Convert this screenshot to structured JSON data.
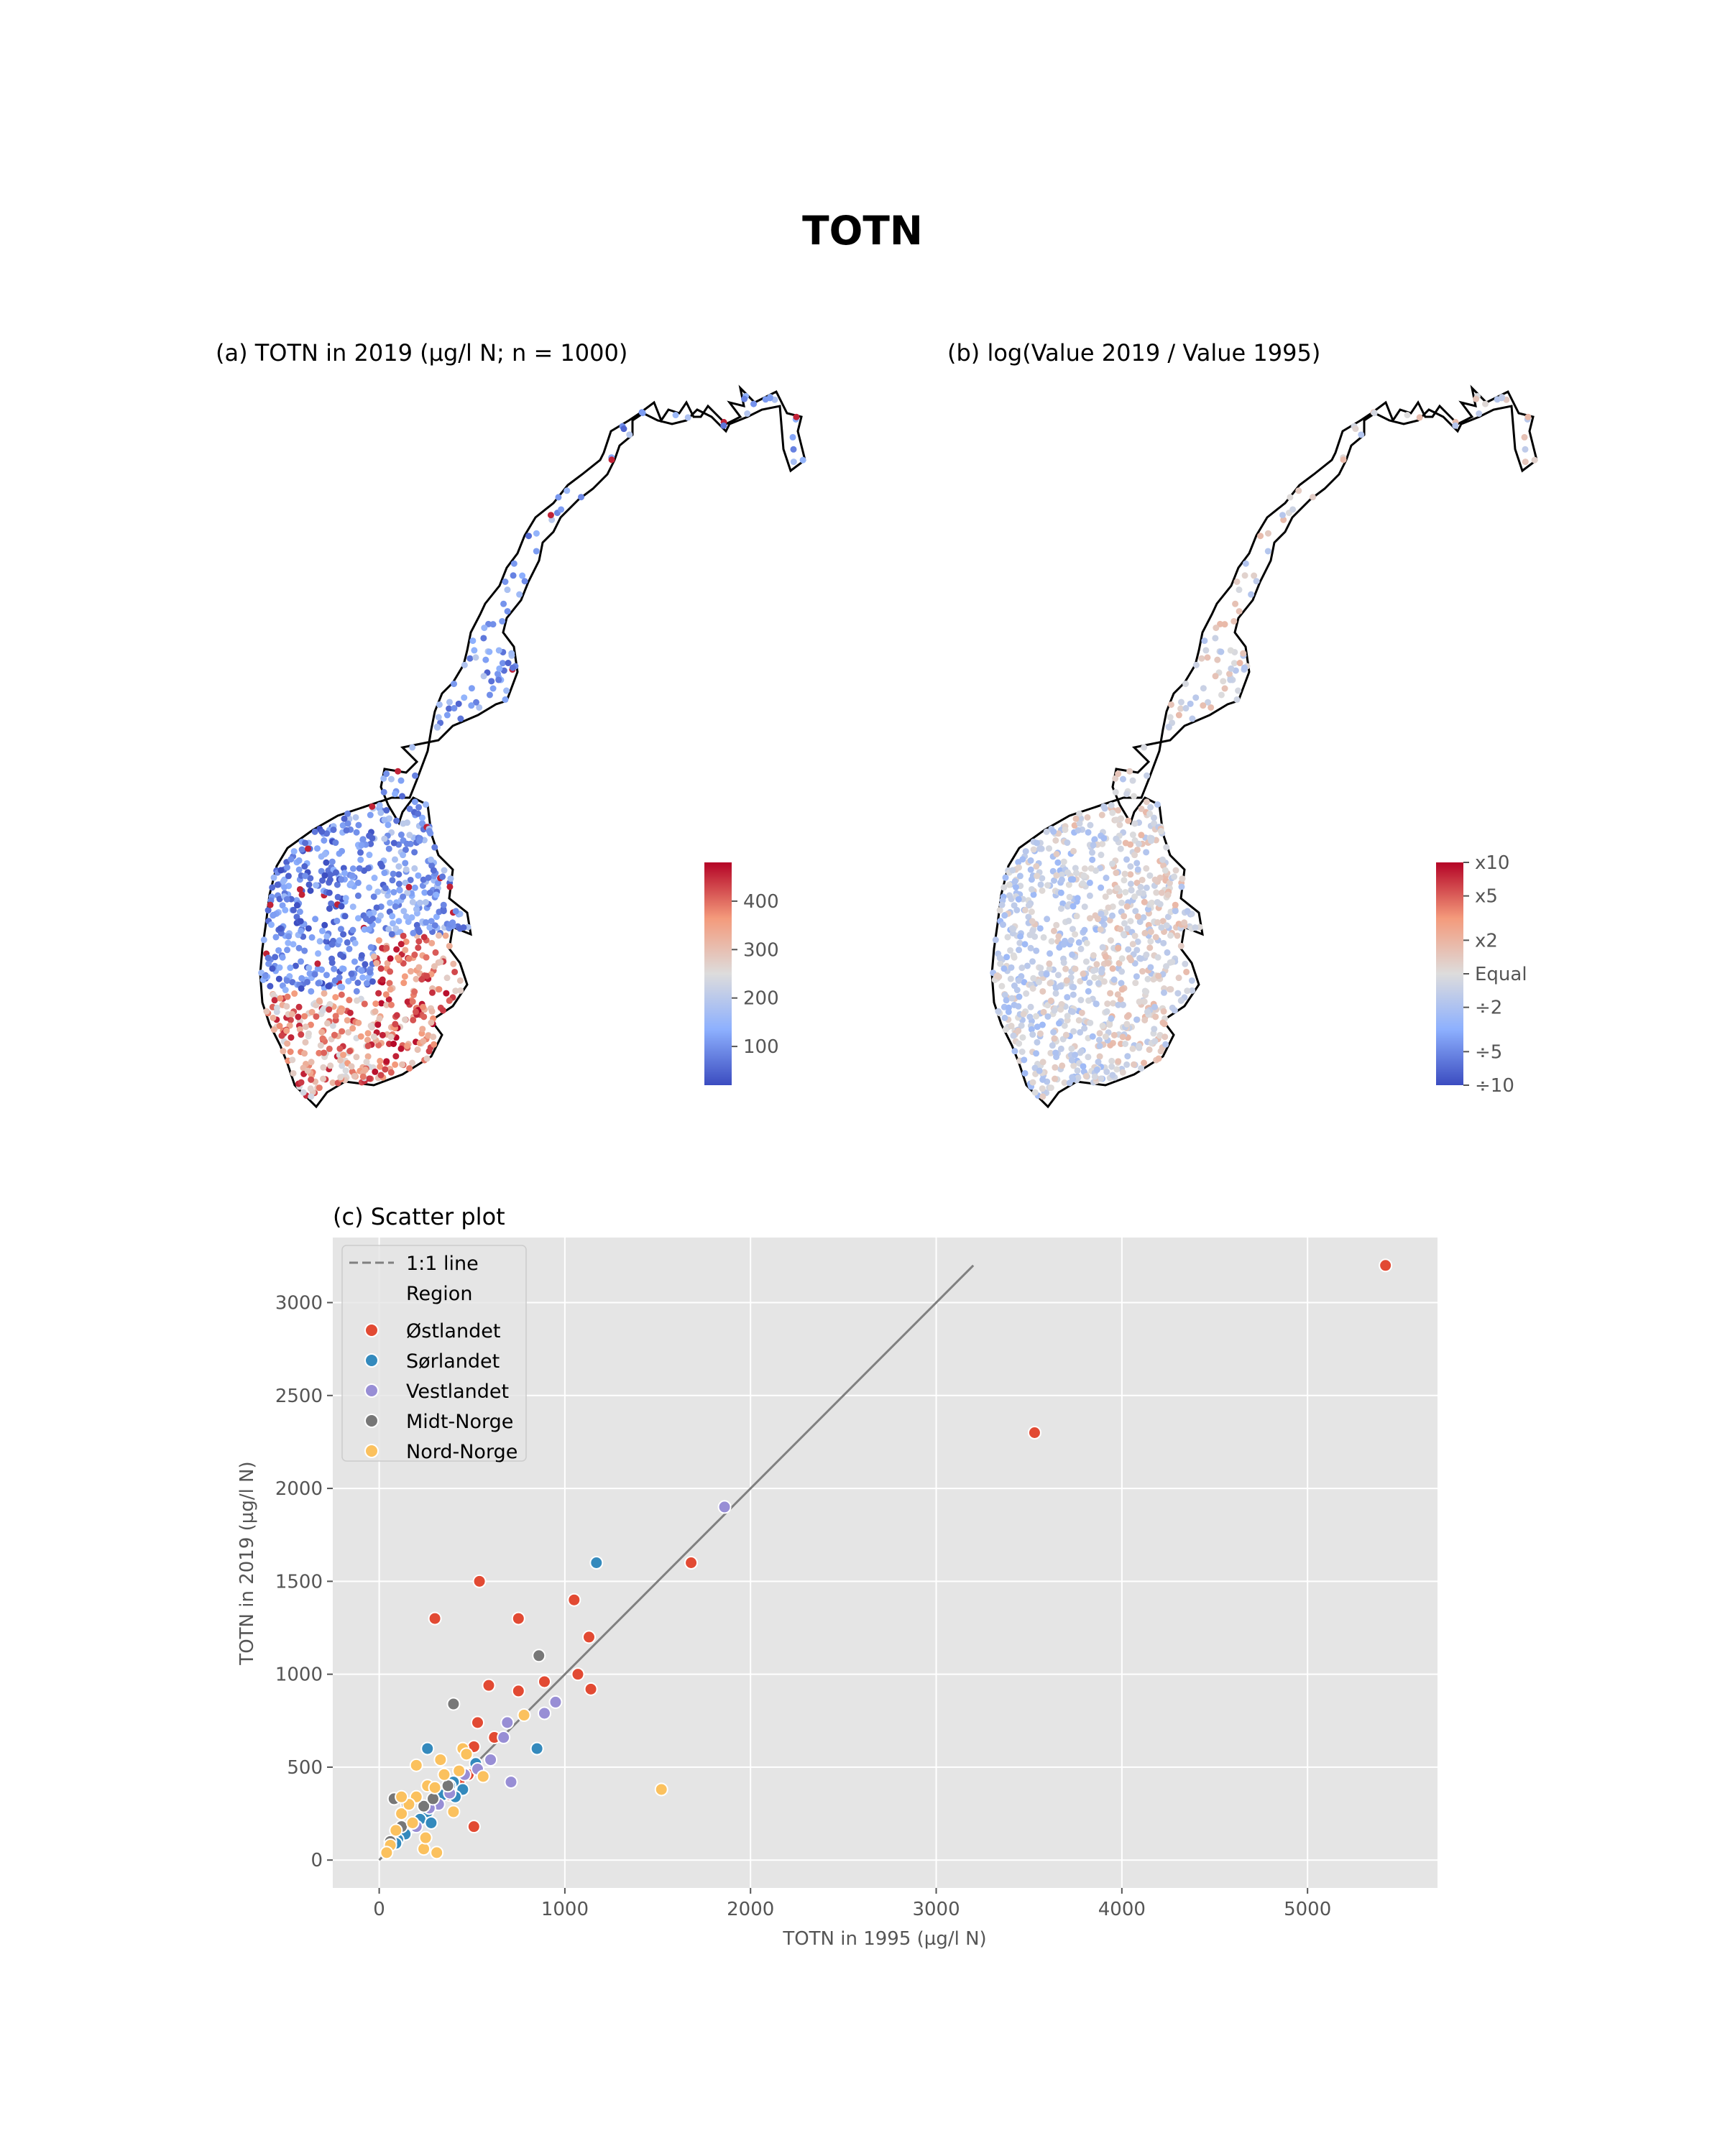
{
  "suptitle": "TOTN",
  "map_a": {
    "title": "(a) TOTN in 2019 (µg/l N; n = 1000)",
    "colorbar": {
      "colormap": "coolwarm",
      "vmin": 20,
      "vmax": 480,
      "ticks": [
        "100",
        "200",
        "300",
        "400"
      ]
    }
  },
  "map_b": {
    "title": "(b) log(Value 2019 / Value 1995)",
    "colorbar": {
      "colormap": "coolwarm",
      "ticks": [
        "x10",
        "x5",
        "x2",
        "Equal",
        "÷2",
        "÷5",
        "÷10"
      ]
    }
  },
  "chart_data": {
    "type": "scatter",
    "title": "(c) Scatter plot",
    "xlabel": "TOTN in 1995 (µg/l N)",
    "ylabel": "TOTN in 2019 (µg/l N)",
    "xlim": [
      -250,
      5700
    ],
    "ylim": [
      -150,
      3350
    ],
    "xticks": [
      0,
      1000,
      2000,
      3000,
      4000,
      5000
    ],
    "yticks": [
      0,
      500,
      1000,
      1500,
      2000,
      2500,
      3000
    ],
    "grid": true,
    "background": "#e5e5e5",
    "legend_position": "top-left",
    "reference_line": {
      "label": "1:1 line",
      "from": [
        0,
        0
      ],
      "to": [
        3200,
        3200
      ],
      "color": "#808080"
    },
    "legend_title": "Region",
    "series": [
      {
        "name": "Østlandet",
        "color": "#e24a33",
        "points": [
          [
            5420,
            3200
          ],
          [
            3530,
            2300
          ],
          [
            1680,
            1600
          ],
          [
            540,
            1500
          ],
          [
            1050,
            1400
          ],
          [
            300,
            1300
          ],
          [
            750,
            1300
          ],
          [
            1130,
            1200
          ],
          [
            1070,
            1000
          ],
          [
            890,
            960
          ],
          [
            590,
            940
          ],
          [
            1140,
            920
          ],
          [
            750,
            910
          ],
          [
            530,
            740
          ],
          [
            620,
            660
          ],
          [
            510,
            610
          ],
          [
            480,
            460
          ],
          [
            430,
            420
          ],
          [
            510,
            180
          ],
          [
            380,
            350
          ]
        ]
      },
      {
        "name": "Sørlandet",
        "color": "#348abd",
        "points": [
          [
            1170,
            1600
          ],
          [
            850,
            600
          ],
          [
            260,
            600
          ],
          [
            520,
            520
          ],
          [
            430,
            480
          ],
          [
            400,
            420
          ],
          [
            380,
            400
          ],
          [
            340,
            350
          ],
          [
            300,
            300
          ],
          [
            260,
            260
          ],
          [
            220,
            220
          ],
          [
            180,
            180
          ],
          [
            140,
            140
          ],
          [
            100,
            110
          ],
          [
            90,
            90
          ],
          [
            450,
            380
          ],
          [
            410,
            340
          ],
          [
            280,
            200
          ]
        ]
      },
      {
        "name": "Vestlandet",
        "color": "#988ed5",
        "points": [
          [
            1860,
            1900
          ],
          [
            950,
            850
          ],
          [
            890,
            790
          ],
          [
            690,
            740
          ],
          [
            670,
            660
          ],
          [
            600,
            540
          ],
          [
            710,
            420
          ],
          [
            530,
            490
          ],
          [
            460,
            460
          ],
          [
            380,
            360
          ],
          [
            320,
            300
          ],
          [
            270,
            280
          ],
          [
            200,
            180
          ]
        ]
      },
      {
        "name": "Midt-Norge",
        "color": "#777777",
        "points": [
          [
            860,
            1100
          ],
          [
            400,
            840
          ],
          [
            80,
            330
          ],
          [
            150,
            300
          ],
          [
            240,
            290
          ],
          [
            370,
            400
          ],
          [
            290,
            330
          ],
          [
            120,
            180
          ],
          [
            60,
            100
          ]
        ]
      },
      {
        "name": "Nord-Norge",
        "color": "#fbc15e",
        "points": [
          [
            1520,
            380
          ],
          [
            780,
            780
          ],
          [
            450,
            600
          ],
          [
            200,
            510
          ],
          [
            330,
            540
          ],
          [
            560,
            450
          ],
          [
            430,
            480
          ],
          [
            400,
            260
          ],
          [
            310,
            40
          ],
          [
            240,
            60
          ],
          [
            250,
            120
          ],
          [
            180,
            200
          ],
          [
            120,
            250
          ],
          [
            90,
            160
          ],
          [
            60,
            80
          ],
          [
            40,
            40
          ],
          [
            260,
            400
          ],
          [
            350,
            460
          ],
          [
            200,
            340
          ],
          [
            160,
            300
          ],
          [
            120,
            340
          ],
          [
            300,
            390
          ],
          [
            470,
            570
          ]
        ]
      }
    ]
  }
}
